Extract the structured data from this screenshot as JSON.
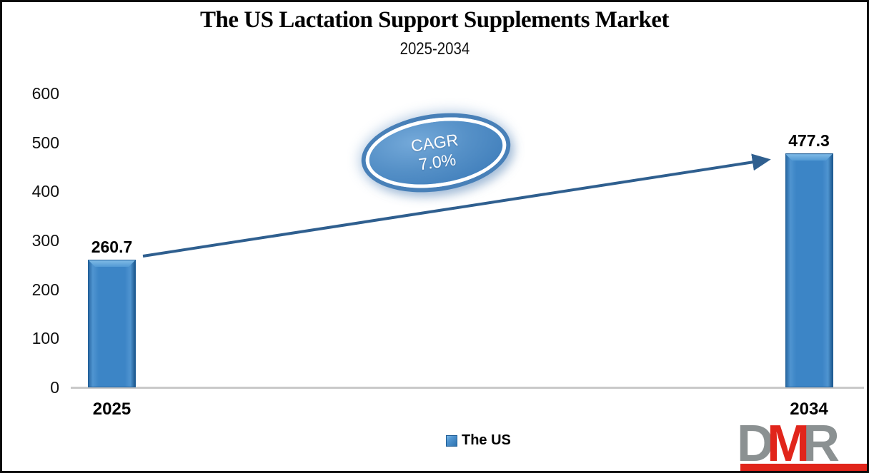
{
  "chart_data": {
    "type": "bar",
    "title": "The US Lactation Support Supplements Market",
    "subtitle": "2025-2034",
    "categories": [
      "2025",
      "2034"
    ],
    "series": [
      {
        "name": "The US",
        "values": [
          260.7,
          477.3
        ]
      }
    ],
    "data_labels": [
      "260.7",
      "477.3"
    ],
    "xlabel": "",
    "ylabel": "",
    "ylim": [
      0,
      600
    ],
    "yticks": [
      0,
      100,
      200,
      300,
      400,
      500,
      600
    ],
    "grid": false,
    "legend_position": "bottom",
    "bar_color": "#3C85C6",
    "arrow_color": "#2F5F8F"
  },
  "cagr_badge": {
    "line1": "CAGR",
    "line2": "7.0%",
    "fill_color": "#4E8BC2",
    "ring_color": "#4880B8"
  },
  "legend": {
    "label": "The US",
    "swatch_color": "#3C85C6"
  },
  "logo": {
    "d": "D",
    "m": "M",
    "r": "R",
    "gray": "#8B9192",
    "red": "#E1251B"
  }
}
